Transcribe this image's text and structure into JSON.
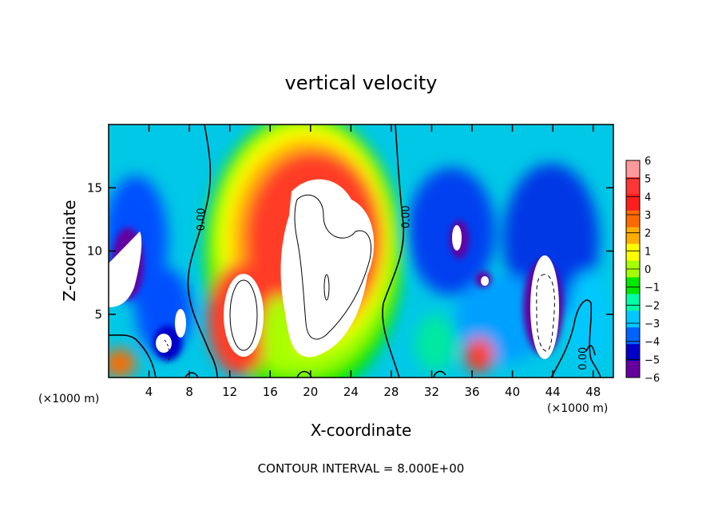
{
  "chart_data": {
    "type": "heatmap",
    "title": "vertical velocity",
    "xlabel": "X-coordinate",
    "ylabel": "Z-coordinate",
    "x_unit_label": "(×1000 m)",
    "xlim": [
      0,
      50
    ],
    "ylim": [
      0,
      20
    ],
    "x_ticks": [
      4,
      8,
      12,
      16,
      20,
      24,
      28,
      32,
      36,
      40,
      44,
      48
    ],
    "y_ticks": [
      5,
      10,
      15
    ],
    "contour_interval_text": "CONTOUR INTERVAL = 8.000E+00",
    "contour_labels": [
      {
        "text": "0.00",
        "x": 9.5,
        "z": 12.5
      },
      {
        "text": "0.00",
        "x": 29.8,
        "z": 12.7
      },
      {
        "text": "0.00",
        "x": 47.3,
        "z": 1.5
      }
    ],
    "colorbar": {
      "labels": [
        "6",
        "5",
        "4",
        "3",
        "2",
        "1",
        "0",
        "−1",
        "−2",
        "−3",
        "−4",
        "−5",
        "−6"
      ],
      "colors": [
        "#ff9a9a",
        "#ff3636",
        "#ff1e1e",
        "#ff6a00",
        "#ffae00",
        "#ffff00",
        "#a6ff00",
        "#00e800",
        "#00ffa6",
        "#00c8ff",
        "#0064ff",
        "#0000c8",
        "#6400a0"
      ]
    },
    "features": [
      {
        "type": "updraft_core",
        "x": [
          18,
          27
        ],
        "z": [
          2,
          15.5
        ],
        "value": "> 6"
      },
      {
        "type": "updraft_core",
        "x": [
          12,
          16
        ],
        "z": [
          1.5,
          7.5
        ],
        "value": "> 6"
      },
      {
        "type": "downdraft_core",
        "x": [
          42,
          45
        ],
        "z": [
          1,
          10
        ],
        "value": "< -6"
      },
      {
        "type": "downdraft_core",
        "x": [
          0,
          3
        ],
        "z": [
          5,
          12
        ],
        "value": "< -6"
      }
    ]
  }
}
